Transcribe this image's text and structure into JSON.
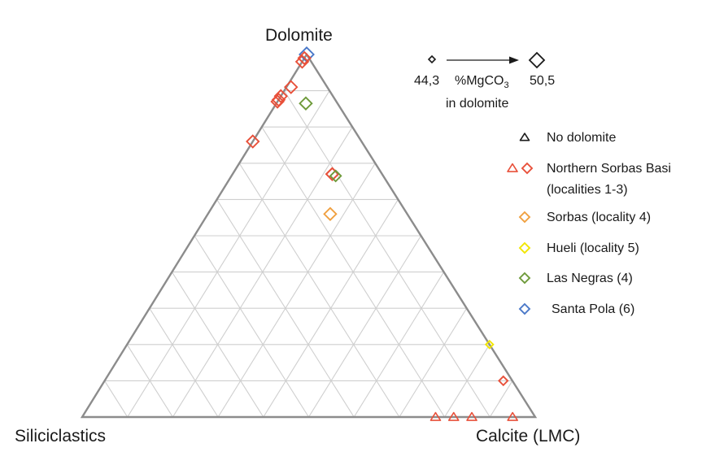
{
  "chart_data": {
    "type": "ternary",
    "vertices": {
      "top": "Dolomite",
      "left": "Siliciclastics",
      "right": "Calcite (LMC)"
    },
    "grid_divisions": 10,
    "size_note": {
      "min_value": "44,3",
      "max_value": "50,5",
      "label_main": "%MgCO",
      "label_sub": "3",
      "label_line2": "in dolomite"
    },
    "legend": [
      {
        "key": "no-dolomite",
        "label": "No dolomite",
        "markers": [
          "triangle"
        ],
        "colors": [
          "#1a1a1a"
        ]
      },
      {
        "key": "northern-sorbas",
        "label": "Northern Sorbas Basi",
        "label2": "(localities 1-3)",
        "markers": [
          "triangle",
          "diamond"
        ],
        "colors": [
          "#e8503a",
          "#e8503a"
        ]
      },
      {
        "key": "sorbas",
        "label": "Sorbas (locality 4)",
        "markers": [
          "diamond"
        ],
        "colors": [
          "#f0a040"
        ]
      },
      {
        "key": "hueli",
        "label": "Hueli (locality 5)",
        "markers": [
          "diamond"
        ],
        "colors": [
          "#f2e600"
        ]
      },
      {
        "key": "las-negras",
        "label": "Las Negras (4)",
        "markers": [
          "diamond"
        ],
        "colors": [
          "#6e9a3a"
        ]
      },
      {
        "key": "santa-pola",
        "label": "Santa Pola (6)",
        "markers": [
          "diamond"
        ],
        "colors": [
          "#4a78c8"
        ]
      }
    ],
    "points": [
      {
        "group": "santa-pola",
        "marker": "diamond",
        "dolomite": 100,
        "siliciclastics": 0,
        "calcite": 0,
        "mgco3": 50.0
      },
      {
        "group": "northern-sorbas",
        "marker": "diamond",
        "dolomite": 98,
        "siliciclastics": 2,
        "calcite": 0,
        "mgco3": 48.5
      },
      {
        "group": "northern-sorbas",
        "marker": "diamond",
        "dolomite": 99,
        "siliciclastics": 1,
        "calcite": 0,
        "mgco3": 48.5
      },
      {
        "group": "northern-sorbas",
        "marker": "diamond",
        "dolomite": 91,
        "siliciclastics": 8,
        "calcite": 1,
        "mgco3": 48.5
      },
      {
        "group": "northern-sorbas",
        "marker": "diamond",
        "dolomite": 88.5,
        "siliciclastics": 11.5,
        "calcite": 0,
        "mgco3": 48.5
      },
      {
        "group": "northern-sorbas",
        "marker": "diamond",
        "dolomite": 87.5,
        "siliciclastics": 12.5,
        "calcite": 0,
        "mgco3": 48.5
      },
      {
        "group": "northern-sorbas",
        "marker": "diamond",
        "dolomite": 87,
        "siliciclastics": 13,
        "calcite": 0,
        "mgco3": 48.5
      },
      {
        "group": "northern-sorbas",
        "marker": "diamond",
        "dolomite": 76,
        "siliciclastics": 24,
        "calcite": 0,
        "mgco3": 48.5
      },
      {
        "group": "las-negras",
        "marker": "diamond",
        "dolomite": 86.5,
        "siliciclastics": 7,
        "calcite": 6.5,
        "mgco3": 48.5
      },
      {
        "group": "northern-sorbas",
        "marker": "diamond",
        "dolomite": 67,
        "siliciclastics": 11,
        "calcite": 22,
        "mgco3": 48.5
      },
      {
        "group": "northern-sorbas",
        "marker": "diamond",
        "dolomite": 67,
        "siliciclastics": 11,
        "calcite": 22,
        "mgco3": 48.5
      },
      {
        "group": "las-negras",
        "marker": "diamond",
        "dolomite": 66.5,
        "siliciclastics": 10.5,
        "calcite": 23,
        "mgco3": 47.5
      },
      {
        "group": "sorbas",
        "marker": "diamond",
        "dolomite": 56,
        "siliciclastics": 17,
        "calcite": 27,
        "mgco3": 48.5
      },
      {
        "group": "hueli",
        "marker": "diamond",
        "dolomite": 20,
        "siliciclastics": 0,
        "calcite": 80,
        "mgco3": 45.0
      },
      {
        "group": "northern-sorbas",
        "marker": "diamond",
        "dolomite": 10,
        "siliciclastics": 2,
        "calcite": 88,
        "mgco3": 46.0
      },
      {
        "group": "northern-sorbas",
        "marker": "triangle",
        "dolomite": 0,
        "siliciclastics": 22,
        "calcite": 78
      },
      {
        "group": "northern-sorbas",
        "marker": "triangle",
        "dolomite": 0,
        "siliciclastics": 18,
        "calcite": 82
      },
      {
        "group": "northern-sorbas",
        "marker": "triangle",
        "dolomite": 0,
        "siliciclastics": 14,
        "calcite": 86
      },
      {
        "group": "northern-sorbas",
        "marker": "triangle",
        "dolomite": 0,
        "siliciclastics": 5,
        "calcite": 95
      }
    ]
  }
}
